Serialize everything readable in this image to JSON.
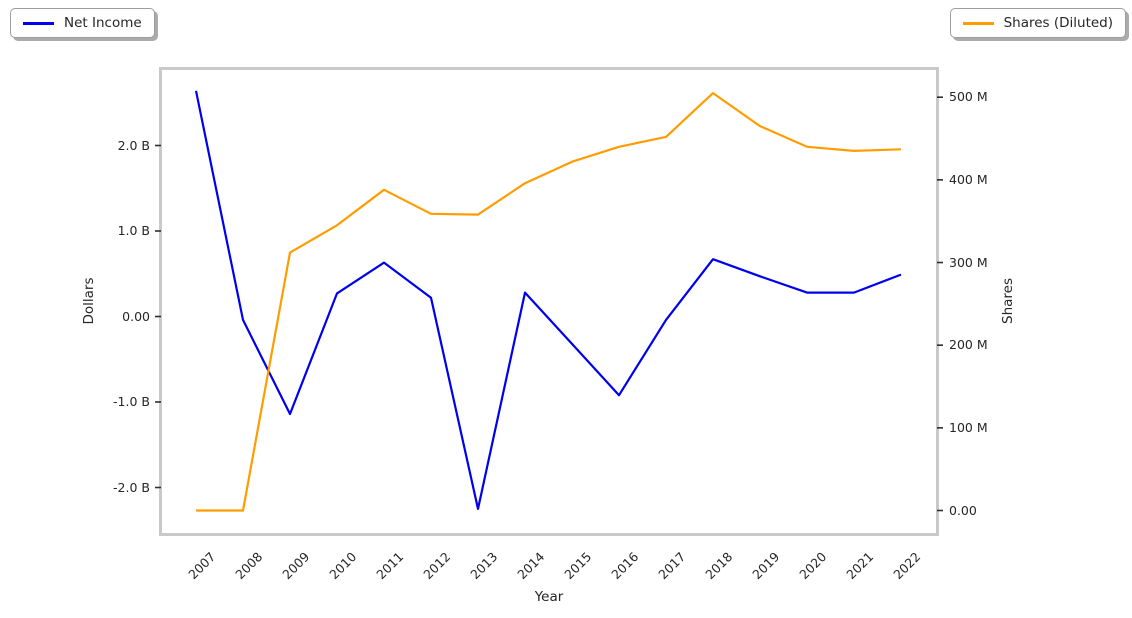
{
  "figure": {
    "background": "#ffffff"
  },
  "legend_left": {
    "label": "Net Income",
    "color": "#0000f0"
  },
  "legend_right": {
    "label": "Shares (Diluted)",
    "color": "#ff9d00"
  },
  "axes": {
    "xlabel": "Year",
    "ylabel_left": "Dollars",
    "ylabel_right": "Shares",
    "x_tick_labels": [
      "2007",
      "2008",
      "2009",
      "2010",
      "2011",
      "2012",
      "2013",
      "2014",
      "2015",
      "2016",
      "2017",
      "2018",
      "2019",
      "2020",
      "2021",
      "2022"
    ],
    "y_ticks_left": [
      {
        "value": 2.0,
        "label": "2.0 B"
      },
      {
        "value": 1.0,
        "label": "1.0 B"
      },
      {
        "value": 0.0,
        "label": "0.00"
      },
      {
        "value": -1.0,
        "label": "-1.0 B"
      },
      {
        "value": -2.0,
        "label": "-2.0 B"
      }
    ],
    "y_ticks_right": [
      {
        "value": 500,
        "label": "500 M"
      },
      {
        "value": 400,
        "label": "400 M"
      },
      {
        "value": 300,
        "label": "300 M"
      },
      {
        "value": 200,
        "label": "200 M"
      },
      {
        "value": 100,
        "label": "100 M"
      },
      {
        "value": 0,
        "label": "0.00"
      }
    ]
  },
  "chart_data": {
    "type": "line",
    "title": "",
    "xlabel": "Year",
    "ylabel_left": "Dollars",
    "ylabel_right": "Shares",
    "x": [
      2007,
      2008,
      2009,
      2010,
      2011,
      2012,
      2013,
      2014,
      2015,
      2016,
      2017,
      2018,
      2019,
      2020,
      2021,
      2022
    ],
    "series": [
      {
        "name": "Net Income",
        "yaxis": "left",
        "color": "#0000f0",
        "units": "billions of dollars",
        "values": [
          2.64,
          -0.04,
          -1.14,
          0.27,
          0.63,
          0.22,
          -2.25,
          0.28,
          -0.32,
          -0.92,
          -0.04,
          0.67,
          0.47,
          0.28,
          0.28,
          0.49
        ]
      },
      {
        "name": "Shares (Diluted)",
        "yaxis": "right",
        "color": "#ff9d00",
        "units": "millions of shares",
        "values": [
          0,
          0,
          312,
          345,
          388,
          359,
          358,
          396,
          422,
          440,
          452,
          505,
          465,
          440,
          435,
          437
        ]
      }
    ],
    "ylim_left_B": [
      -2.52,
      2.88
    ],
    "ylim_right_M": [
      -25,
      533
    ],
    "grid": false,
    "legend_position": "two fancy boxes with shadow, outside plot: top-left and top-right"
  }
}
